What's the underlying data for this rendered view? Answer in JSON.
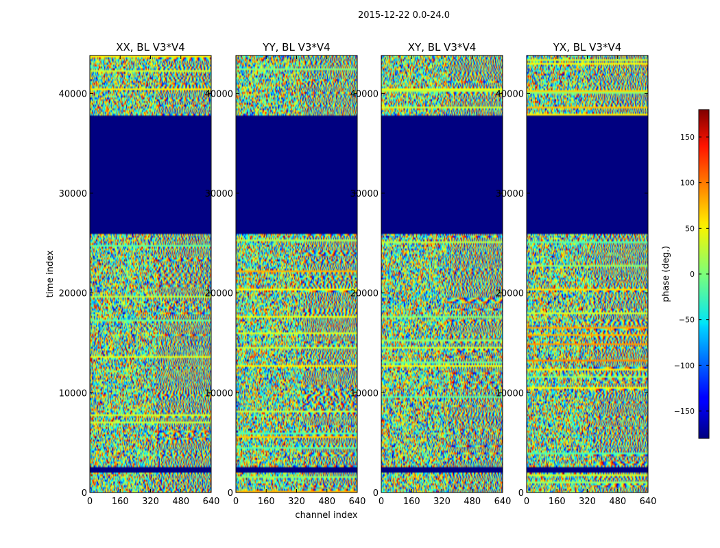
{
  "suptitle": "2015-12-22 0.0-24.0",
  "chart_data": {
    "type": "heatmap",
    "xlabel": "channel index",
    "ylabel": "time index",
    "xlim": [
      0,
      640
    ],
    "ylim": [
      0,
      43800
    ],
    "x_ticks": [
      "0",
      "160",
      "320",
      "480",
      "640"
    ],
    "x_tick_values": [
      0,
      160,
      320,
      480,
      640
    ],
    "y_ticks": [
      "0",
      "10000",
      "20000",
      "30000",
      "40000"
    ],
    "y_tick_values": [
      0,
      10000,
      20000,
      30000,
      40000
    ],
    "panels": [
      {
        "title": "XX, BL V3*V4",
        "polarization": "XX"
      },
      {
        "title": "YY, BL V3*V4",
        "polarization": "YY"
      },
      {
        "title": "XY, BL V3*V4",
        "polarization": "XY"
      },
      {
        "title": "YX, BL V3*V4",
        "polarization": "YX"
      }
    ],
    "blank_time_ranges": [
      [
        26000,
        37800
      ],
      [
        2000,
        2600
      ]
    ],
    "colorbar": {
      "label": "phase (deg.)",
      "colormap": "jet",
      "range": [
        -180,
        180
      ],
      "ticks": [
        "−150",
        "−100",
        "−50",
        "0",
        "50",
        "100",
        "150"
      ],
      "tick_values": [
        -150,
        -100,
        -50,
        0,
        50,
        100,
        150
      ]
    }
  }
}
